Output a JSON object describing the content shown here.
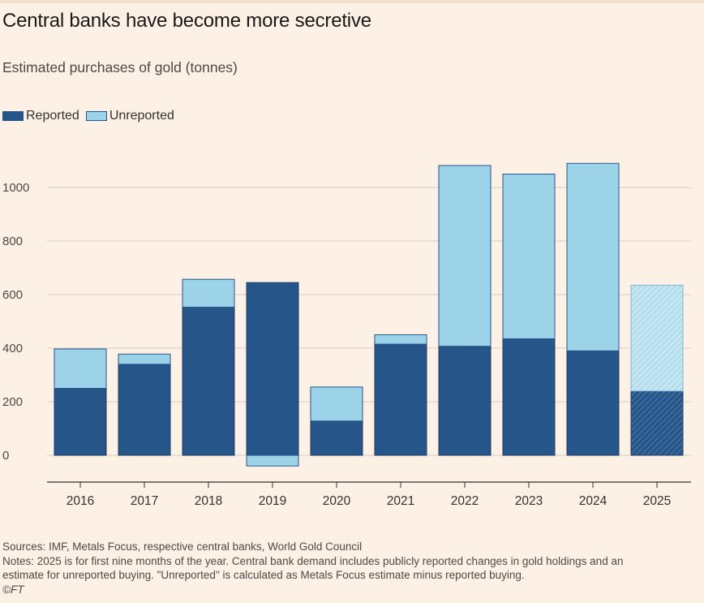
{
  "header": {
    "title": "Central banks have become more secretive",
    "subtitle": "Estimated purchases of gold (tonnes)"
  },
  "legend": {
    "reported_label": "Reported",
    "unreported_label": "Unreported"
  },
  "colors": {
    "background": "#fdf1e6",
    "reported": "#26558a",
    "unreported": "#9dd3e8",
    "grid": "#d9cbbf",
    "axis": "#33302e"
  },
  "chart_data": {
    "type": "bar",
    "stacked": true,
    "categories": [
      "2016",
      "2017",
      "2018",
      "2019",
      "2020",
      "2021",
      "2022",
      "2023",
      "2024",
      "2025"
    ],
    "series": [
      {
        "name": "Reported",
        "values": [
          250,
          340,
          553,
          645,
          128,
          415,
          407,
          435,
          390,
          240
        ]
      },
      {
        "name": "Unreported",
        "values": [
          147,
          38,
          104,
          -40,
          127,
          35,
          675,
          615,
          700,
          395
        ]
      }
    ],
    "hatched_categories": [
      "2025"
    ],
    "yticks": [
      0,
      200,
      400,
      600,
      800,
      1000
    ],
    "ylim": [
      -100,
      1180
    ],
    "grid": true,
    "legend_position": "top-left"
  },
  "footer": {
    "sources": "Sources: IMF, Metals Focus, respective central banks, World Gold Council",
    "notes_line1": "Notes: 2025 is for first nine months of the year. Central bank demand includes publicly reported changes in gold holdings and an",
    "notes_line2": "estimate for unreported buying. \"Unreported\" is calculated as Metals Focus estimate minus reported buying.",
    "copyright": "©FT"
  }
}
